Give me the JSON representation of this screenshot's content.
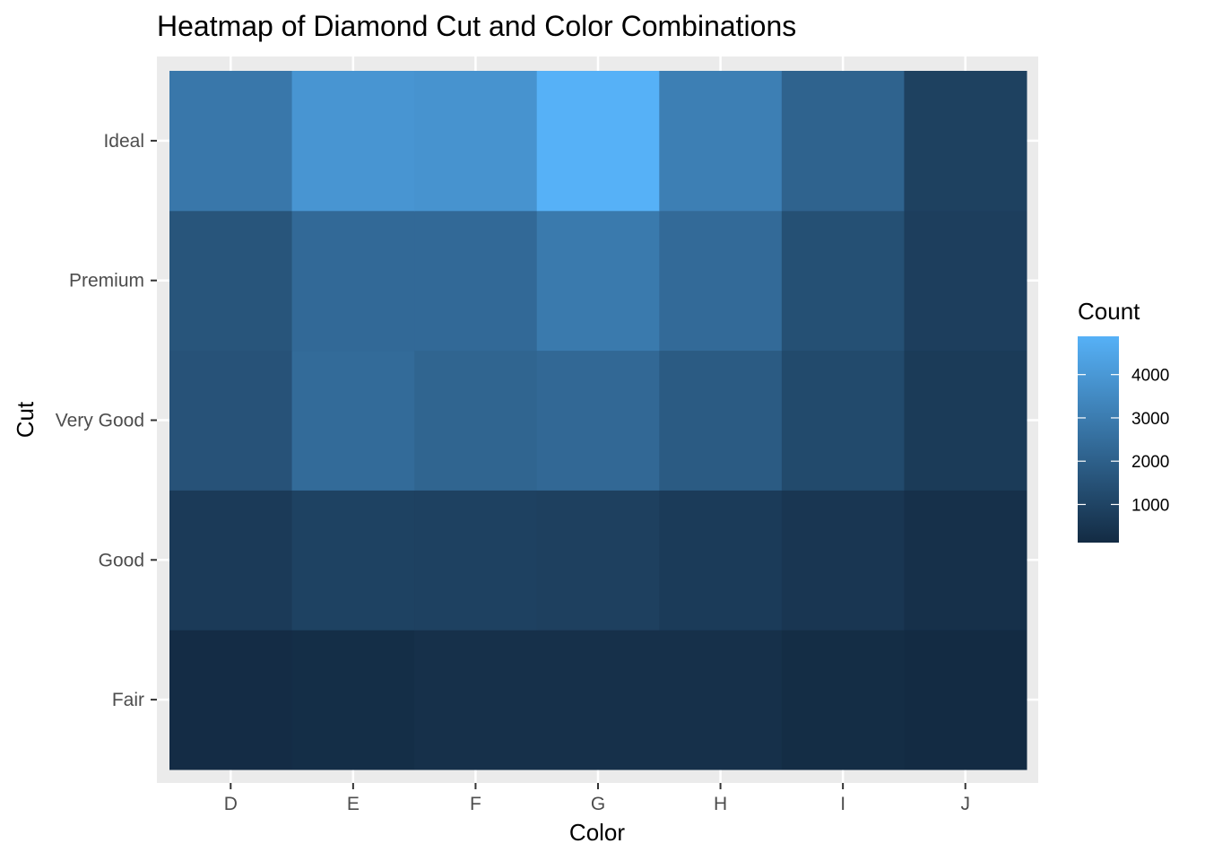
{
  "chart_data": {
    "type": "heatmap",
    "title": "Heatmap of Diamond Cut and Color Combinations",
    "xlabel": "Color",
    "ylabel": "Cut",
    "x_categories": [
      "D",
      "E",
      "F",
      "G",
      "H",
      "I",
      "J"
    ],
    "y_categories": [
      "Fair",
      "Good",
      "Very Good",
      "Premium",
      "Ideal"
    ],
    "values": [
      [
        163,
        224,
        312,
        314,
        303,
        175,
        119
      ],
      [
        662,
        933,
        909,
        871,
        702,
        522,
        307
      ],
      [
        1513,
        2400,
        2164,
        2299,
        1824,
        1204,
        678
      ],
      [
        1603,
        2337,
        2331,
        2924,
        2360,
        1428,
        808
      ],
      [
        2834,
        3903,
        3826,
        4884,
        3115,
        2093,
        896
      ]
    ],
    "legend": {
      "title": "Count",
      "ticks": [
        1000,
        2000,
        3000,
        4000
      ],
      "low_color": "#132B43",
      "high_color": "#56B1F7",
      "position": "right"
    },
    "panel_background": "#EBEBEB",
    "grid": true
  }
}
